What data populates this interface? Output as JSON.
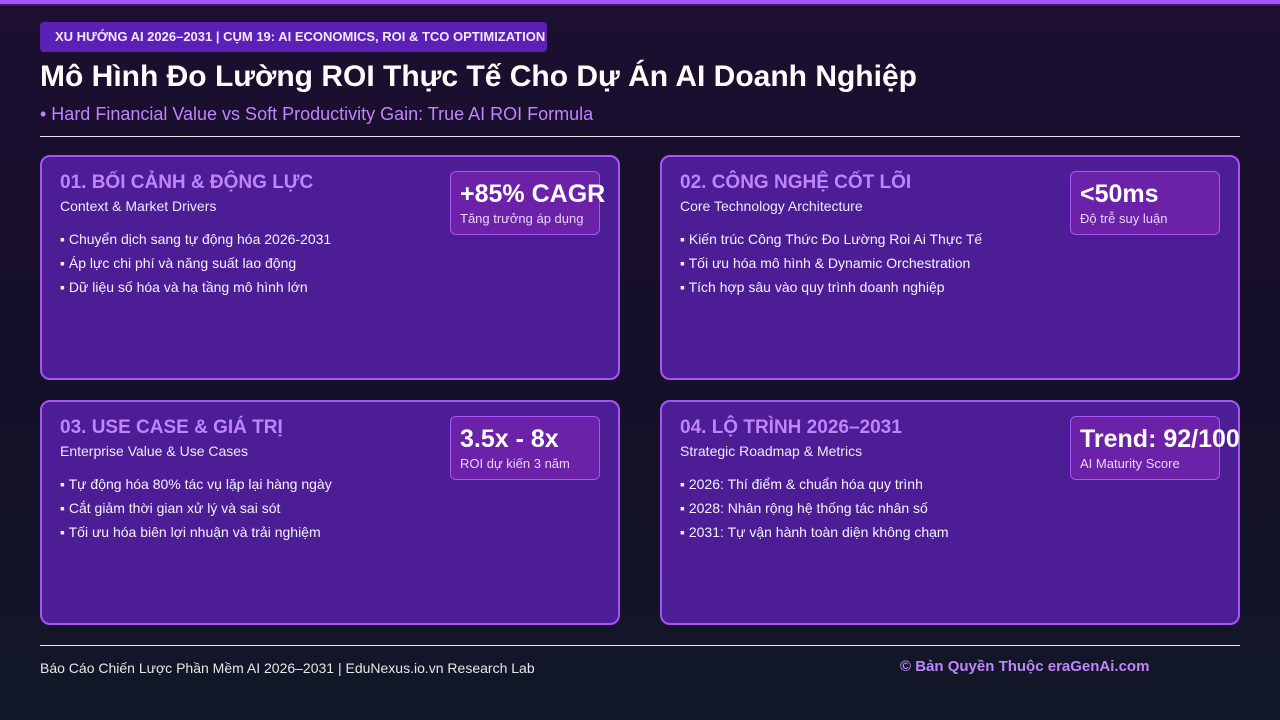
{
  "header": {
    "badge": "XU HƯỚNG AI 2026–2031 | CỤM 19: AI ECONOMICS, ROI & TCO OPTIMIZATION",
    "title": "Mô Hình Đo Lường ROI Thực Tế Cho Dự Án AI Doanh Nghiệp",
    "subtitle": "• Hard Financial Value vs Soft Productivity Gain: True AI ROI Formula"
  },
  "cards": [
    {
      "title": "01. BỐI CẢNH & ĐỘNG LỰC",
      "subtitle": "Context & Market Drivers",
      "stat": {
        "value": "+85% CAGR",
        "label": "Tăng trưởng áp dụng"
      },
      "bullets": [
        "▪ Chuyển dịch sang tự động hóa 2026-2031",
        "▪ Áp lực chi phí và năng suất lao động",
        "▪ Dữ liệu số hóa và hạ tầng mô hình lớn"
      ]
    },
    {
      "title": "02. CÔNG NGHỆ CỐT LÕI",
      "subtitle": "Core Technology Architecture",
      "stat": {
        "value": "<50ms",
        "label": "Độ trễ suy luận"
      },
      "bullets": [
        "▪ Kiến trúc Công Thức Đo Lường Roi Ai Thực Tế",
        "▪ Tối ưu hóa mô hình & Dynamic Orchestration",
        "▪ Tích hợp sâu vào quy trình doanh nghiệp"
      ]
    },
    {
      "title": "03. USE CASE & GIÁ TRỊ",
      "subtitle": "Enterprise Value & Use Cases",
      "stat": {
        "value": "3.5x - 8x",
        "label": "ROI dự kiến 3 năm"
      },
      "bullets": [
        "▪ Tự động hóa 80% tác vụ lặp lại hàng ngày",
        "▪ Cắt giảm thời gian xử lý và sai sót",
        "▪ Tối ưu hóa biên lợi nhuận và trải nghiệm"
      ]
    },
    {
      "title": "04. LỘ TRÌNH 2026–2031",
      "subtitle": "Strategic Roadmap & Metrics",
      "stat": {
        "value": "Trend: 92/100",
        "label": "AI Maturity Score"
      },
      "bullets": [
        "▪ 2026: Thí điểm & chuẩn hóa quy trình",
        "▪ 2028: Nhân rộng hệ thống tác nhân số",
        "▪ 2031: Tự vận hành toàn diện không chạm"
      ]
    }
  ],
  "footer": {
    "left": "Báo Cáo Chiến Lược Phần Mềm AI 2026–2031 | EduNexus.io.vn Research Lab",
    "right": "© Bản Quyền Thuộc eraGenAi.com"
  }
}
